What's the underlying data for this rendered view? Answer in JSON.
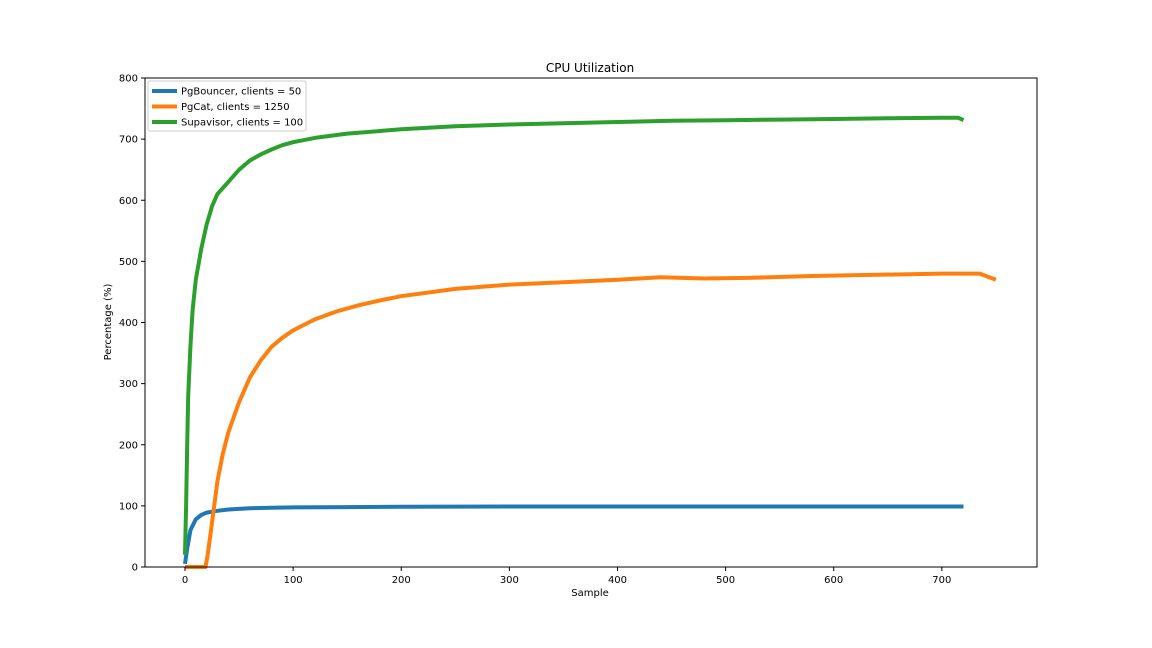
{
  "chart_data": {
    "type": "line",
    "title": "CPU Utilization",
    "xlabel": "Sample",
    "ylabel": "Percentage (%)",
    "xlim": [
      -37,
      788
    ],
    "ylim": [
      0,
      800
    ],
    "xticks": [
      0,
      100,
      200,
      300,
      400,
      500,
      600,
      700
    ],
    "yticks": [
      0,
      100,
      200,
      300,
      400,
      500,
      600,
      700,
      800
    ],
    "grid": false,
    "legend_position": "upper left",
    "series": [
      {
        "name": "PgBouncer, clients = 50",
        "color": "#1f77b4",
        "points": [
          [
            0,
            5
          ],
          [
            2,
            30
          ],
          [
            5,
            60
          ],
          [
            10,
            78
          ],
          [
            15,
            85
          ],
          [
            20,
            89
          ],
          [
            30,
            92
          ],
          [
            40,
            94
          ],
          [
            60,
            96
          ],
          [
            80,
            97
          ],
          [
            100,
            97.5
          ],
          [
            150,
            98
          ],
          [
            200,
            98.5
          ],
          [
            300,
            99
          ],
          [
            400,
            99
          ],
          [
            500,
            99
          ],
          [
            600,
            99
          ],
          [
            720,
            99
          ]
        ]
      },
      {
        "name": "PgCat, clients = 1250",
        "color": "#ff7f0e",
        "points": [
          [
            0,
            0
          ],
          [
            19,
            0
          ],
          [
            21,
            20
          ],
          [
            24,
            60
          ],
          [
            27,
            100
          ],
          [
            30,
            140
          ],
          [
            35,
            185
          ],
          [
            40,
            220
          ],
          [
            50,
            270
          ],
          [
            60,
            310
          ],
          [
            70,
            338
          ],
          [
            80,
            360
          ],
          [
            90,
            375
          ],
          [
            100,
            387
          ],
          [
            120,
            405
          ],
          [
            140,
            418
          ],
          [
            160,
            428
          ],
          [
            180,
            436
          ],
          [
            200,
            443
          ],
          [
            250,
            455
          ],
          [
            300,
            462
          ],
          [
            350,
            466
          ],
          [
            400,
            470
          ],
          [
            440,
            474
          ],
          [
            480,
            472
          ],
          [
            520,
            473
          ],
          [
            580,
            476
          ],
          [
            640,
            478
          ],
          [
            700,
            480
          ],
          [
            735,
            480
          ],
          [
            750,
            470
          ]
        ]
      },
      {
        "name": "Supavisor, clients = 100",
        "color": "#2ca02c",
        "points": [
          [
            0,
            20
          ],
          [
            1,
            100
          ],
          [
            2,
            200
          ],
          [
            3,
            280
          ],
          [
            5,
            360
          ],
          [
            7,
            420
          ],
          [
            10,
            470
          ],
          [
            15,
            520
          ],
          [
            20,
            560
          ],
          [
            25,
            590
          ],
          [
            30,
            610
          ],
          [
            40,
            630
          ],
          [
            50,
            650
          ],
          [
            60,
            665
          ],
          [
            70,
            675
          ],
          [
            80,
            683
          ],
          [
            90,
            690
          ],
          [
            100,
            695
          ],
          [
            120,
            702
          ],
          [
            150,
            709
          ],
          [
            200,
            716
          ],
          [
            250,
            721
          ],
          [
            300,
            724
          ],
          [
            350,
            726
          ],
          [
            400,
            728
          ],
          [
            450,
            730
          ],
          [
            500,
            731
          ],
          [
            550,
            732
          ],
          [
            600,
            733
          ],
          [
            650,
            734
          ],
          [
            700,
            735
          ],
          [
            715,
            735
          ],
          [
            720,
            731
          ]
        ]
      }
    ]
  }
}
